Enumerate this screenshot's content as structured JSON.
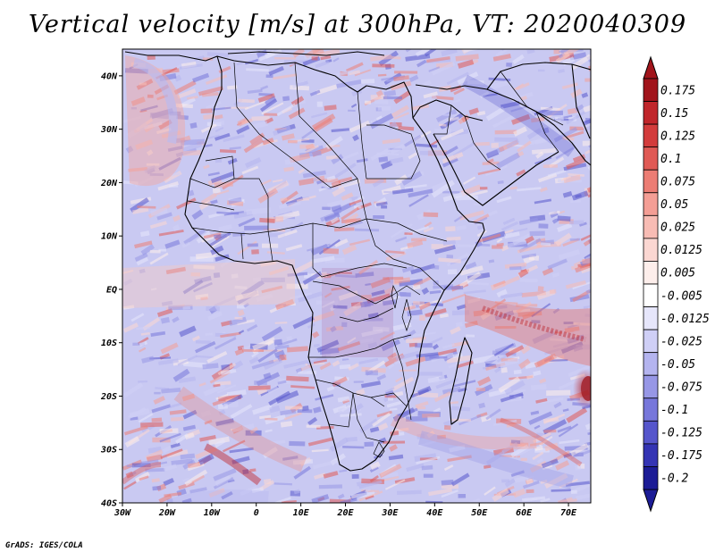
{
  "title": "Vertical velocity [m/s] at 300hPa, VT: 2020040309",
  "credit": "GrADS: IGES/COLA",
  "map": {
    "lon_range": [
      -30,
      75
    ],
    "lat_range": [
      -40,
      45
    ],
    "lon_ticks": [
      {
        "value": -30,
        "label": "30W"
      },
      {
        "value": -20,
        "label": "20W"
      },
      {
        "value": -10,
        "label": "10W"
      },
      {
        "value": 0,
        "label": "0"
      },
      {
        "value": 10,
        "label": "10E"
      },
      {
        "value": 20,
        "label": "20E"
      },
      {
        "value": 30,
        "label": "30E"
      },
      {
        "value": 40,
        "label": "40E"
      },
      {
        "value": 50,
        "label": "50E"
      },
      {
        "value": 60,
        "label": "60E"
      },
      {
        "value": 70,
        "label": "70E"
      }
    ],
    "lat_ticks": [
      {
        "value": 40,
        "label": "40N"
      },
      {
        "value": 30,
        "label": "30N"
      },
      {
        "value": 20,
        "label": "20N"
      },
      {
        "value": 10,
        "label": "10N"
      },
      {
        "value": 0,
        "label": "EQ"
      },
      {
        "value": -10,
        "label": "10S"
      },
      {
        "value": -20,
        "label": "20S"
      },
      {
        "value": -30,
        "label": "30S"
      },
      {
        "value": -40,
        "label": "40S"
      }
    ]
  },
  "colorbar": {
    "levels": [
      {
        "label": "0.175",
        "color": "#a1141b"
      },
      {
        "label": "0.15",
        "color": "#c0262b"
      },
      {
        "label": "0.125",
        "color": "#d33c3c"
      },
      {
        "label": "0.1",
        "color": "#e05a55"
      },
      {
        "label": "0.075",
        "color": "#ec7d74"
      },
      {
        "label": "0.05",
        "color": "#f49e95"
      },
      {
        "label": "0.025",
        "color": "#f8bcb4"
      },
      {
        "label": "0.0125",
        "color": "#fbd7d2"
      },
      {
        "label": "0.005",
        "color": "#fdeeeb"
      },
      {
        "label": "-0.005",
        "color": "#ffffff"
      },
      {
        "label": "-0.0125",
        "color": "#e6e6fb"
      },
      {
        "label": "-0.025",
        "color": "#cfcff6"
      },
      {
        "label": "-0.05",
        "color": "#b4b4ef"
      },
      {
        "label": "-0.075",
        "color": "#9797e6"
      },
      {
        "label": "-0.1",
        "color": "#7777db"
      },
      {
        "label": "-0.125",
        "color": "#5656cc"
      },
      {
        "label": "-0.175",
        "color": "#3434b4"
      },
      {
        "label": "-0.2",
        "color": "#1c1c96"
      }
    ],
    "top_color": "#a1141b",
    "bottom_color": "#1c1c96"
  }
}
